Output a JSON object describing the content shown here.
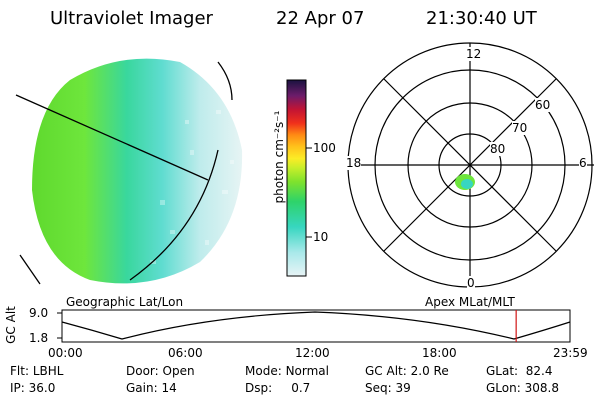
{
  "header": {
    "instrument": "Ultraviolet Imager",
    "date": "22 Apr 07",
    "time": "21:30:40 UT"
  },
  "colorbar": {
    "unit_label": "photon cm⁻²s⁻¹",
    "ticks": [
      "100",
      "10"
    ]
  },
  "polar_plot": {
    "mlt_labels": [
      "12",
      "18",
      "6",
      "0"
    ],
    "lat_labels": [
      "60",
      "70",
      "80"
    ]
  },
  "timeline": {
    "left_title": "Geographic Lat/Lon",
    "right_title": "Apex  MLat/MLT",
    "ylabel": "GC Alt",
    "y_ticks": [
      "9.0",
      "1.8"
    ],
    "x_ticks": [
      "00:00",
      "06:00",
      "12:00",
      "18:00",
      "23:59"
    ],
    "current_marker_fraction": 0.894
  },
  "info": {
    "row1": [
      {
        "label": "Flt:",
        "value": "LBHL"
      },
      {
        "label": "Door:",
        "value": "Open"
      },
      {
        "label": "Mode:",
        "value": "Normal"
      },
      {
        "label": "GC Alt:",
        "value": "2.0 Re"
      },
      {
        "label": "GLat:",
        "value": "82.4"
      }
    ],
    "row2": [
      {
        "label": "IP:",
        "value": "36.0"
      },
      {
        "label": "Gain:",
        "value": "14"
      },
      {
        "label": "Dsp:",
        "value": "0.7"
      },
      {
        "label": "Seq:",
        "value": "39"
      },
      {
        "label": "GLon:",
        "value": "308.8"
      }
    ]
  }
}
